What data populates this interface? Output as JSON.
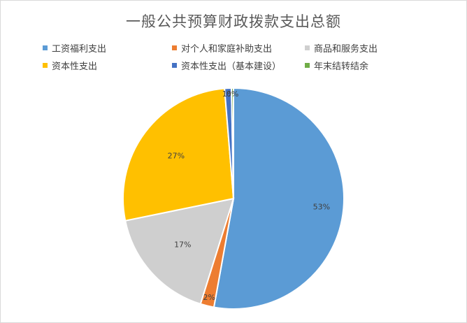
{
  "chart_data": {
    "type": "pie",
    "title": "一般公共预算财政拨款支出总额",
    "categories": [
      "工资福利支出",
      "对个人和家庭补助支出",
      "商品和服务支出",
      "资本性支出",
      "资本性支出（基本建设）",
      "年末结转结余"
    ],
    "values": [
      53,
      2,
      17,
      27,
      1,
      0.3
    ],
    "labels": [
      "53%",
      "2%",
      "17%",
      "27%",
      "1%",
      "0%"
    ],
    "colors": [
      "#5b9bd5",
      "#ed7d31",
      "#cfcfcf",
      "#ffc000",
      "#4472c4",
      "#70ad47"
    ],
    "legend": "top"
  }
}
